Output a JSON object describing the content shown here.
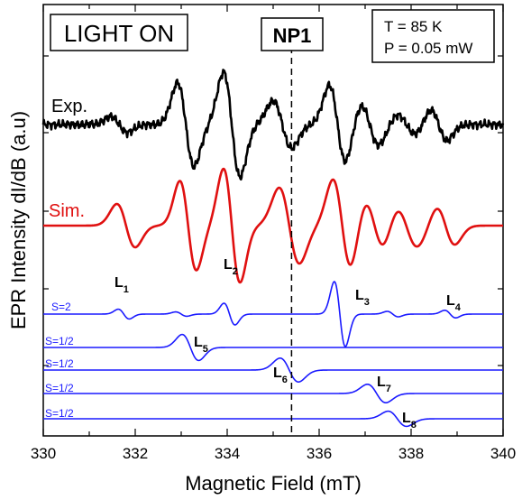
{
  "chart_data": {
    "type": "line",
    "title": "",
    "xlabel": "Magnetic Field  (mT)",
    "ylabel": "EPR Intensity dI/dB (a.u)",
    "xlim": [
      330,
      340
    ],
    "xticks": [
      "330",
      "332",
      "334",
      "336",
      "338",
      "340"
    ],
    "grid": false,
    "annotations": {
      "light_box": "LIGHT ON",
      "np_marker": {
        "label": "NP1",
        "x": 335.4
      },
      "conditions": [
        "T = 85 K",
        "P = 0.05 mW"
      ]
    },
    "colors": {
      "exp": "#000000",
      "sim": "#e01010",
      "components": "#1a1aff"
    },
    "series": [
      {
        "name": "Exp.",
        "color": "#000000",
        "peaks": [
          {
            "center": 331.65,
            "amp": 0.6,
            "width": 0.18
          },
          {
            "center": 333.1,
            "amp": 3.2,
            "width": 0.18
          },
          {
            "center": 334.1,
            "amp": 4.0,
            "width": 0.18
          },
          {
            "center": 335.2,
            "amp": 1.8,
            "width": 0.2
          },
          {
            "center": 336.4,
            "amp": 3.0,
            "width": 0.18
          },
          {
            "center": 337.1,
            "amp": 1.6,
            "width": 0.2
          },
          {
            "center": 337.9,
            "amp": 0.8,
            "width": 0.2
          },
          {
            "center": 338.6,
            "amp": 1.2,
            "width": 0.18
          }
        ]
      },
      {
        "name": "Sim.",
        "color": "#e01010",
        "peaks": [
          {
            "center": 331.8,
            "amp": 1.6,
            "width": 0.2
          },
          {
            "center": 333.15,
            "amp": 3.3,
            "width": 0.18
          },
          {
            "center": 334.1,
            "amp": 4.2,
            "width": 0.18
          },
          {
            "center": 335.35,
            "amp": 2.8,
            "width": 0.22
          },
          {
            "center": 336.5,
            "amp": 3.4,
            "width": 0.2
          },
          {
            "center": 337.2,
            "amp": 2.0,
            "width": 0.22
          },
          {
            "center": 337.9,
            "amp": 1.6,
            "width": 0.24
          },
          {
            "center": 338.75,
            "amp": 1.4,
            "width": 0.2
          }
        ]
      }
    ],
    "components": [
      {
        "label": "S=2",
        "peaks": [
          {
            "center": 331.75,
            "amp": 0.45,
            "width": 0.12
          },
          {
            "center": 333.0,
            "amp": 0.2,
            "width": 0.12
          },
          {
            "center": 334.05,
            "amp": 1.0,
            "width": 0.12
          },
          {
            "center": 336.45,
            "amp": 3.0,
            "width": 0.12
          },
          {
            "center": 337.6,
            "amp": 0.25,
            "width": 0.12
          },
          {
            "center": 338.85,
            "amp": 0.35,
            "width": 0.12
          }
        ]
      },
      {
        "label": "S=1/2",
        "peaks": [
          {
            "center": 333.2,
            "amp": 1.2,
            "width": 0.18
          }
        ]
      },
      {
        "label": "S=1/2",
        "peaks": [
          {
            "center": 335.35,
            "amp": 1.1,
            "width": 0.2
          }
        ]
      },
      {
        "label": "S=1/2",
        "peaks": [
          {
            "center": 337.25,
            "amp": 0.85,
            "width": 0.2
          }
        ]
      },
      {
        "label": "S=1/2",
        "peaks": [
          {
            "center": 337.7,
            "amp": 0.7,
            "width": 0.2
          }
        ]
      }
    ],
    "line_labels": [
      {
        "main": "L",
        "sub": "1"
      },
      {
        "main": "L",
        "sub": "2"
      },
      {
        "main": "L",
        "sub": "3"
      },
      {
        "main": "L",
        "sub": "4"
      },
      {
        "main": "L",
        "sub": "5"
      },
      {
        "main": "L",
        "sub": "6"
      },
      {
        "main": "L",
        "sub": "7"
      },
      {
        "main": "L",
        "sub": "8"
      }
    ]
  }
}
